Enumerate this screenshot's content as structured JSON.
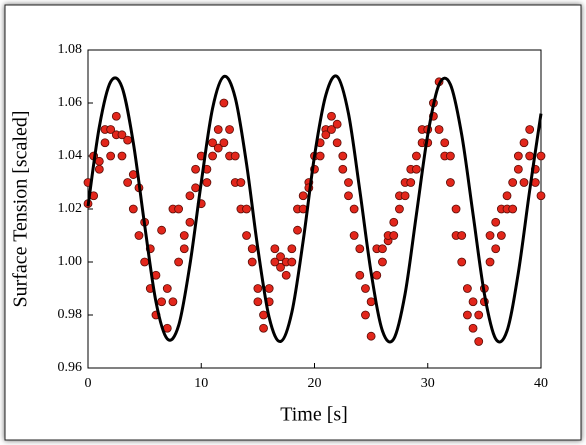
{
  "chart_data": {
    "type": "scatter",
    "xlabel": "Time [s]",
    "ylabel": "Surface Tension [scaled]",
    "xlim": [
      0,
      40
    ],
    "xticks": [
      0,
      10,
      20,
      30,
      40
    ],
    "ylim": [
      0.96,
      1.08
    ],
    "yticks": [
      0.96,
      0.98,
      {
        "value": 1,
        "label": "1.00"
      },
      1.02,
      1.04,
      1.06,
      1.08
    ],
    "series": [
      {
        "type": "scatter",
        "color": "#e2261b",
        "x": [
          0,
          0,
          0.5,
          0.5,
          1,
          1,
          1.5,
          1.5,
          2,
          2,
          2.5,
          2.5,
          3,
          3,
          3.5,
          3.5,
          4,
          4,
          4.5,
          4.5,
          5,
          5,
          5.5,
          5.5,
          6,
          6,
          6.5,
          6.5,
          7,
          7,
          7.5,
          7.5,
          8,
          8,
          8.5,
          8.5,
          9,
          9,
          9.5,
          9.5,
          10,
          10,
          10.5,
          10.5,
          11,
          11,
          11.5,
          11.5,
          12,
          12,
          12.5,
          12.5,
          13,
          13,
          13.5,
          13.5,
          14,
          14,
          14.5,
          14.5,
          15,
          15,
          15.5,
          15.5,
          16,
          16,
          16.5,
          16.5,
          17,
          17,
          17.5,
          17.5,
          18,
          18,
          18.5,
          18.5,
          19,
          19,
          19.5,
          19.5,
          20,
          20,
          20.5,
          20.5,
          21,
          21,
          21.5,
          21.5,
          22,
          22,
          22.5,
          22.5,
          23,
          23,
          23.5,
          23.5,
          24,
          24,
          24.5,
          24.5,
          25,
          25,
          25.5,
          25.5,
          26,
          26,
          26.5,
          26.5,
          27,
          27,
          27.5,
          27.5,
          28,
          28,
          28.5,
          28.5,
          29,
          29,
          29.5,
          29.5,
          30,
          30,
          30.5,
          30.5,
          31,
          31,
          31.5,
          31.5,
          32,
          32,
          32.5,
          32.5,
          33,
          33,
          33.5,
          33.5,
          34,
          34,
          34.5,
          34.5,
          35,
          35,
          35.5,
          35.5,
          36,
          36,
          36.5,
          36.5,
          37,
          37,
          37.5,
          37.5,
          38,
          38,
          38.5,
          38.5,
          39,
          39,
          39.5,
          39.5,
          40,
          40
        ],
        "values": [
          1.03,
          1.022,
          1.04,
          1.025,
          1.038,
          1.035,
          1.05,
          1.045,
          1.04,
          1.05,
          1.055,
          1.048,
          1.048,
          1.04,
          1.046,
          1.03,
          1.033,
          1.02,
          1.028,
          1.01,
          1.015,
          1.0,
          0.99,
          1.005,
          0.98,
          0.995,
          0.985,
          1.012,
          0.99,
          0.975,
          1.02,
          0.985,
          1.02,
          1.0,
          1.005,
          1.01,
          1.015,
          1.025,
          1.035,
          1.028,
          1.04,
          1.022,
          1.03,
          1.035,
          1.045,
          1.04,
          1.05,
          1.043,
          1.06,
          1.045,
          1.05,
          1.04,
          1.03,
          1.04,
          1.02,
          1.03,
          1.01,
          1.02,
          1.0,
          1.005,
          0.985,
          0.99,
          0.975,
          0.98,
          0.985,
          0.99,
          1.0,
          1.005,
          1.002,
          0.998,
          1.0,
          0.995,
          1.005,
          1.0,
          1.012,
          1.02,
          1.02,
          1.025,
          1.03,
          1.028,
          1.035,
          1.04,
          1.04,
          1.045,
          1.05,
          1.048,
          1.055,
          1.05,
          1.045,
          1.052,
          1.04,
          1.035,
          1.03,
          1.025,
          1.02,
          1.01,
          1.005,
          0.995,
          0.99,
          0.98,
          0.972,
          0.985,
          0.995,
          1.005,
          1.005,
          1.0,
          1.008,
          1.01,
          1.01,
          1.015,
          1.02,
          1.025,
          1.03,
          1.025,
          1.035,
          1.03,
          1.04,
          1.035,
          1.045,
          1.05,
          1.05,
          1.045,
          1.06,
          1.055,
          1.068,
          1.05,
          1.045,
          1.04,
          1.04,
          1.03,
          1.02,
          1.01,
          1.0,
          1.01,
          0.98,
          0.99,
          0.985,
          0.975,
          0.97,
          0.98,
          0.99,
          0.985,
          1.0,
          1.01,
          1.005,
          1.015,
          1.02,
          1.01,
          1.02,
          1.025,
          1.03,
          1.02,
          1.035,
          1.04,
          1.03,
          1.045,
          1.05,
          1.04,
          1.035,
          1.03,
          1.04,
          1.025
        ]
      },
      {
        "type": "line",
        "color": "#000000",
        "x": [
          0,
          1,
          2,
          3,
          4,
          5,
          6,
          7,
          8,
          9,
          10,
          11,
          12,
          13,
          14,
          15,
          16,
          17,
          18,
          19,
          20,
          21,
          22,
          23,
          24,
          25,
          26,
          27,
          28,
          29,
          30,
          31,
          32,
          33,
          34,
          35,
          36,
          37,
          38,
          39,
          40
        ],
        "values": [
          1.021,
          1.051,
          1.068,
          1.066,
          1.045,
          1.014,
          0.985,
          0.971,
          0.976,
          0.999,
          1.03,
          1.058,
          1.07,
          1.062,
          1.037,
          1.005,
          0.979,
          0.97,
          0.981,
          1.008,
          1.04,
          1.063,
          1.07,
          1.056,
          1.027,
          0.996,
          0.974,
          0.971,
          0.988,
          1.018,
          1.048,
          1.067,
          1.067,
          1.048,
          1.018,
          0.988,
          0.971,
          0.974,
          0.996,
          1.027,
          1.056
        ]
      }
    ]
  }
}
